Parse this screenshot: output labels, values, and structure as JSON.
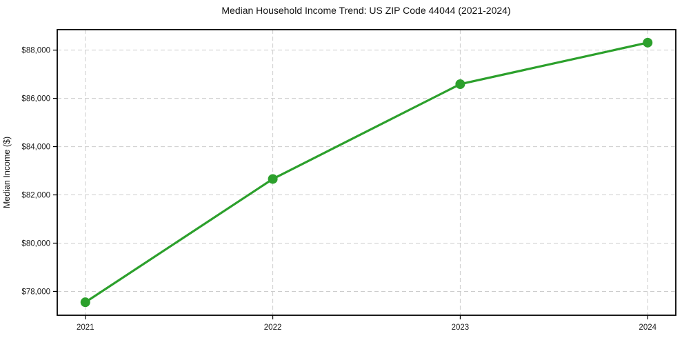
{
  "chart_data": {
    "type": "line",
    "title": "Median Household Income Trend: US ZIP Code 44044 (2021-2024)",
    "xlabel": "",
    "ylabel": "Median Income ($)",
    "x": [
      2021,
      2022,
      2023,
      2024
    ],
    "x_tick_labels": [
      "2021",
      "2022",
      "2023",
      "2024"
    ],
    "values": [
      77550,
      82660,
      86590,
      88310
    ],
    "y_ticks": [
      78000,
      80000,
      82000,
      84000,
      86000,
      88000
    ],
    "y_tick_labels": [
      "$78,000",
      "$80,000",
      "$82,000",
      "$84,000",
      "$86,000",
      "$88,000"
    ],
    "xlim": [
      2020.85,
      2024.15
    ],
    "ylim": [
      77012,
      88848
    ],
    "grid": "dashed, both axes, behind data",
    "legend": "none",
    "line_color": "#2ca02c",
    "marker": "circle",
    "marker_color": "#2ca02c",
    "grid_color": "#cccccc",
    "spine_color": "#000000",
    "background_color": "#ffffff"
  }
}
